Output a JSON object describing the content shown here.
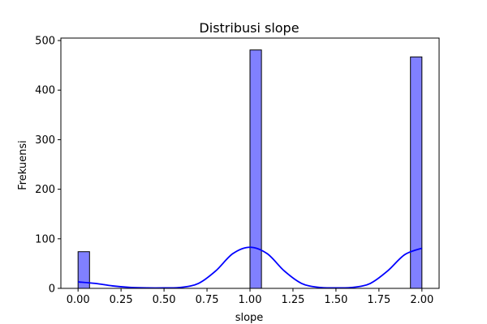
{
  "chart_data": {
    "type": "bar",
    "title": "Distribusi slope",
    "xlabel": "slope",
    "ylabel": "Frekuensi",
    "xlim": [
      -0.1,
      2.1
    ],
    "ylim": [
      0,
      505
    ],
    "x_ticks": [
      0.0,
      0.25,
      0.5,
      0.75,
      1.0,
      1.25,
      1.5,
      1.75,
      2.0
    ],
    "x_tick_labels": [
      "0.00",
      "0.25",
      "0.50",
      "0.75",
      "1.00",
      "1.25",
      "1.50",
      "1.75",
      "2.00"
    ],
    "y_ticks": [
      0,
      100,
      200,
      300,
      400,
      500
    ],
    "y_tick_labels": [
      "0",
      "100",
      "200",
      "300",
      "400",
      "500"
    ],
    "grid": false,
    "bins": [
      {
        "x0": 0.0,
        "x1": 0.0667,
        "count": 74
      },
      {
        "x0": 1.0,
        "x1": 1.0667,
        "count": 481
      },
      {
        "x0": 1.9333,
        "x1": 2.0,
        "count": 467
      }
    ],
    "kde": {
      "x": [
        0.0,
        0.1,
        0.2,
        0.3,
        0.4,
        0.5,
        0.6,
        0.7,
        0.8,
        0.9,
        1.0,
        1.1,
        1.2,
        1.3,
        1.4,
        1.5,
        1.6,
        1.7,
        1.8,
        1.9,
        2.0
      ],
      "y": [
        13,
        10,
        5,
        2,
        1,
        1,
        2,
        10,
        35,
        70,
        83,
        70,
        35,
        10,
        2,
        1,
        2,
        10,
        35,
        68,
        81
      ]
    },
    "colors": {
      "bar_fill": "#8080ff",
      "bar_edge": "#000000",
      "kde_line": "#0000ff"
    }
  }
}
